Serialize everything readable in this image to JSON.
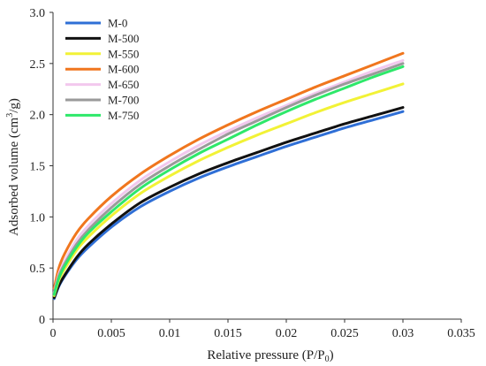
{
  "chart_data": {
    "type": "line",
    "xlabel": "Relative pressure (P/P",
    "xlabel_sub": "0",
    "xlabel_end": ")",
    "ylabel": "Adsorbed volume (cm",
    "ylabel_sup": "3",
    "ylabel_end": "/g)",
    "xlim": [
      0,
      0.035
    ],
    "ylim": [
      0,
      3.0
    ],
    "x_ticks": [
      0,
      0.005,
      0.01,
      0.015,
      0.02,
      0.025,
      0.03,
      0.035
    ],
    "x_tick_labels": [
      "0",
      "0.005",
      "0.01",
      "0.015",
      "0.02",
      "0.025",
      "0.03",
      "0.035"
    ],
    "y_ticks": [
      0,
      0.5,
      1.0,
      1.5,
      2.0,
      2.5,
      3.0
    ],
    "y_tick_labels": [
      "0",
      "0.5",
      "1.0",
      "1.5",
      "2.0",
      "2.5",
      "3.0"
    ],
    "grid": false,
    "legend_position": "top-left",
    "x": [
      0.0001,
      0.0005,
      0.001,
      0.002,
      0.003,
      0.005,
      0.0075,
      0.01,
      0.0125,
      0.015,
      0.0175,
      0.02,
      0.0225,
      0.025,
      0.0275,
      0.03
    ],
    "series": [
      {
        "name": "M-0",
        "color": "#2f6fd6",
        "values": [
          0.2,
          0.32,
          0.42,
          0.58,
          0.7,
          0.9,
          1.1,
          1.25,
          1.38,
          1.49,
          1.59,
          1.69,
          1.78,
          1.87,
          1.95,
          2.03
        ]
      },
      {
        "name": "M-500",
        "color": "#111111",
        "values": [
          0.21,
          0.33,
          0.43,
          0.6,
          0.73,
          0.93,
          1.14,
          1.29,
          1.42,
          1.53,
          1.63,
          1.73,
          1.82,
          1.91,
          1.99,
          2.07
        ]
      },
      {
        "name": "M-550",
        "color": "#f2f236",
        "values": [
          0.23,
          0.38,
          0.49,
          0.67,
          0.8,
          1.01,
          1.23,
          1.4,
          1.55,
          1.68,
          1.8,
          1.91,
          2.02,
          2.12,
          2.21,
          2.3
        ]
      },
      {
        "name": "M-600",
        "color": "#f0761e",
        "values": [
          0.3,
          0.5,
          0.64,
          0.84,
          0.98,
          1.2,
          1.42,
          1.6,
          1.76,
          1.9,
          2.03,
          2.15,
          2.27,
          2.38,
          2.49,
          2.6
        ]
      },
      {
        "name": "M-650",
        "color": "#f2c8ee",
        "values": [
          0.26,
          0.44,
          0.57,
          0.77,
          0.91,
          1.13,
          1.36,
          1.54,
          1.7,
          1.84,
          1.97,
          2.09,
          2.21,
          2.32,
          2.43,
          2.53
        ]
      },
      {
        "name": "M-700",
        "color": "#9a9a9a",
        "values": [
          0.25,
          0.42,
          0.54,
          0.73,
          0.87,
          1.09,
          1.32,
          1.5,
          1.66,
          1.81,
          1.94,
          2.07,
          2.19,
          2.3,
          2.4,
          2.5
        ]
      },
      {
        "name": "M-750",
        "color": "#2ee86a",
        "values": [
          0.24,
          0.4,
          0.52,
          0.7,
          0.84,
          1.05,
          1.28,
          1.46,
          1.62,
          1.76,
          1.9,
          2.03,
          2.15,
          2.26,
          2.37,
          2.47
        ]
      }
    ]
  }
}
